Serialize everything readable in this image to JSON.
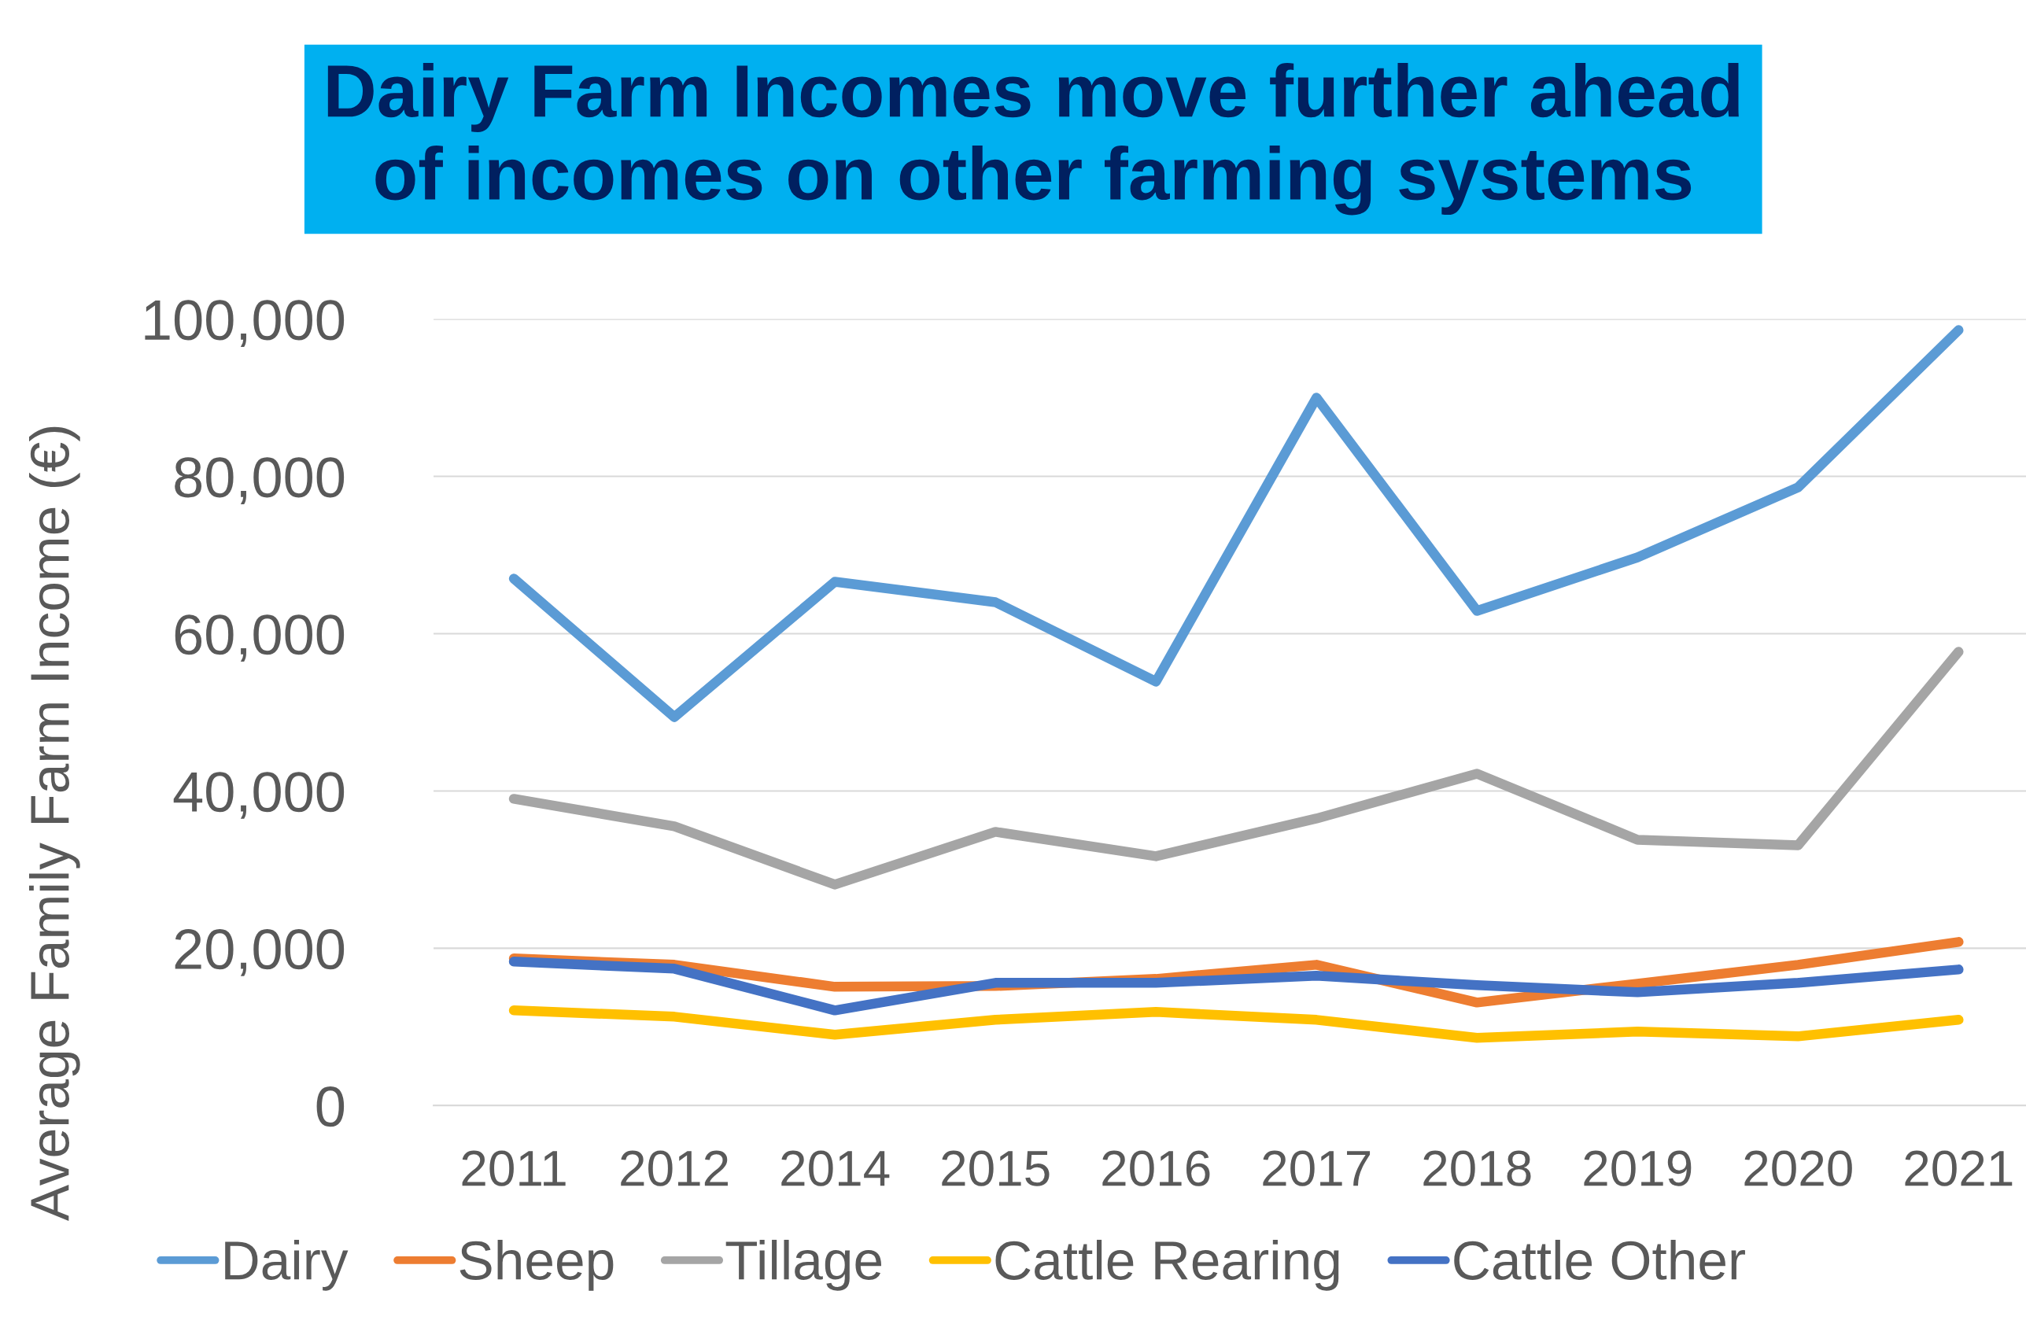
{
  "chart_data": {
    "type": "line",
    "title": "Dairy Farm Incomes move further ahead\nof incomes on other farming systems",
    "ylabel": "Average Family Farm Income (€)",
    "categories": [
      "2011",
      "2012",
      "2014",
      "2015",
      "2016",
      "2017",
      "2018",
      "2019",
      "2020",
      "2021"
    ],
    "series": [
      {
        "name": "Dairy",
        "color": "#5b9bd5",
        "values": [
          67000,
          49400,
          66600,
          64000,
          53900,
          90000,
          62900,
          69700,
          78600,
          98600
        ]
      },
      {
        "name": "Sheep",
        "color": "#ed7d31",
        "values": [
          18700,
          17900,
          15100,
          15200,
          16100,
          17900,
          13100,
          15500,
          17900,
          20800
        ]
      },
      {
        "name": "Tillage",
        "color": "#a5a5a5",
        "values": [
          39000,
          35500,
          28100,
          34800,
          31700,
          36500,
          42200,
          33800,
          33100,
          57700
        ]
      },
      {
        "name": "Cattle Rearing",
        "color": "#ffc000",
        "values": [
          12100,
          11300,
          9000,
          10900,
          11900,
          10900,
          8600,
          9400,
          8800,
          10900
        ]
      },
      {
        "name": "Cattle Other",
        "color": "#4472c4",
        "values": [
          18300,
          17400,
          12100,
          15600,
          15600,
          16500,
          15300,
          14400,
          15600,
          17300
        ]
      }
    ],
    "ylim": [
      0,
      100000
    ],
    "yticks": [
      {
        "value": 0,
        "label": "0"
      },
      {
        "value": 20000,
        "label": "20,000"
      },
      {
        "value": 40000,
        "label": "40,000"
      },
      {
        "value": 60000,
        "label": "60,000"
      },
      {
        "value": 80000,
        "label": "80,000"
      },
      {
        "value": 100000,
        "label": "100,000"
      }
    ],
    "grid": "y",
    "legend": "bottom",
    "marker": "none",
    "line_style": "solid"
  }
}
